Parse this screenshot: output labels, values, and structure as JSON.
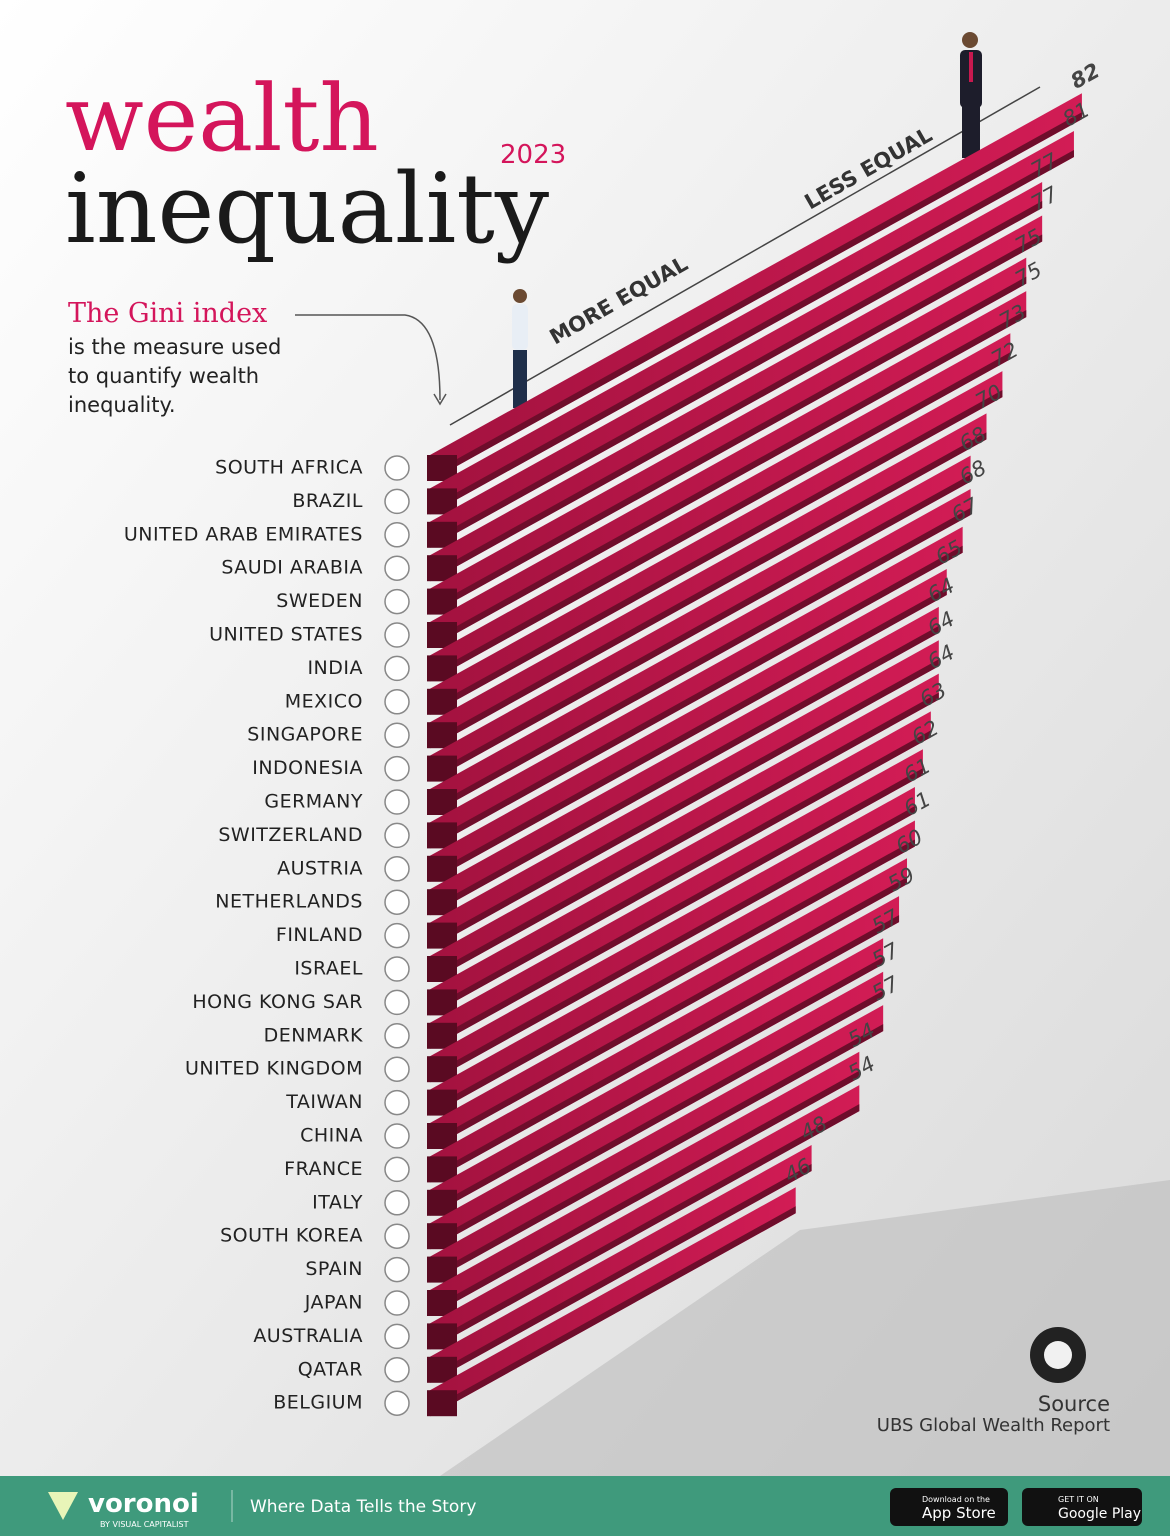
{
  "chart_data": {
    "type": "bar",
    "title": "wealth",
    "subtitle": "inequality",
    "year": "2023",
    "categories": [
      "SOUTH AFRICA",
      "BRAZIL",
      "UNITED ARAB EMIRATES",
      "SAUDI ARABIA",
      "SWEDEN",
      "UNITED STATES",
      "INDIA",
      "MEXICO",
      "SINGAPORE",
      "INDONESIA",
      "GERMANY",
      "SWITZERLAND",
      "AUSTRIA",
      "NETHERLANDS",
      "FINLAND",
      "ISRAEL",
      "HONG KONG SAR",
      "DENMARK",
      "UNITED KINGDOM",
      "TAIWAN",
      "CHINA",
      "FRANCE",
      "ITALY",
      "SOUTH KOREA",
      "SPAIN",
      "JAPAN",
      "AUSTRALIA",
      "QATAR",
      "BELGIUM"
    ],
    "values": [
      82,
      81,
      77,
      77,
      75,
      75,
      73,
      72,
      70,
      68,
      68,
      67,
      65,
      64,
      64,
      64,
      63,
      62,
      61,
      61,
      60,
      59,
      57,
      57,
      57,
      54,
      54,
      48,
      46
    ],
    "color": "#c8194f",
    "axis_low_label": "MORE EQUAL",
    "axis_high_label": "LESS EQUAL",
    "note_title": "The Gini index",
    "note_text": [
      "is the measure used",
      "to quantify wealth",
      "inequality."
    ],
    "source_label": "Source",
    "source": "UBS Global Wealth Report"
  },
  "footer": {
    "brand": "voronoi",
    "brand_sub": "BY VISUAL CAPITALIST",
    "tagline": "Where Data Tells the Story",
    "app_store_small": "Download on the",
    "app_store": "App Store",
    "google_small": "GET IT ON",
    "google": "Google Play"
  }
}
